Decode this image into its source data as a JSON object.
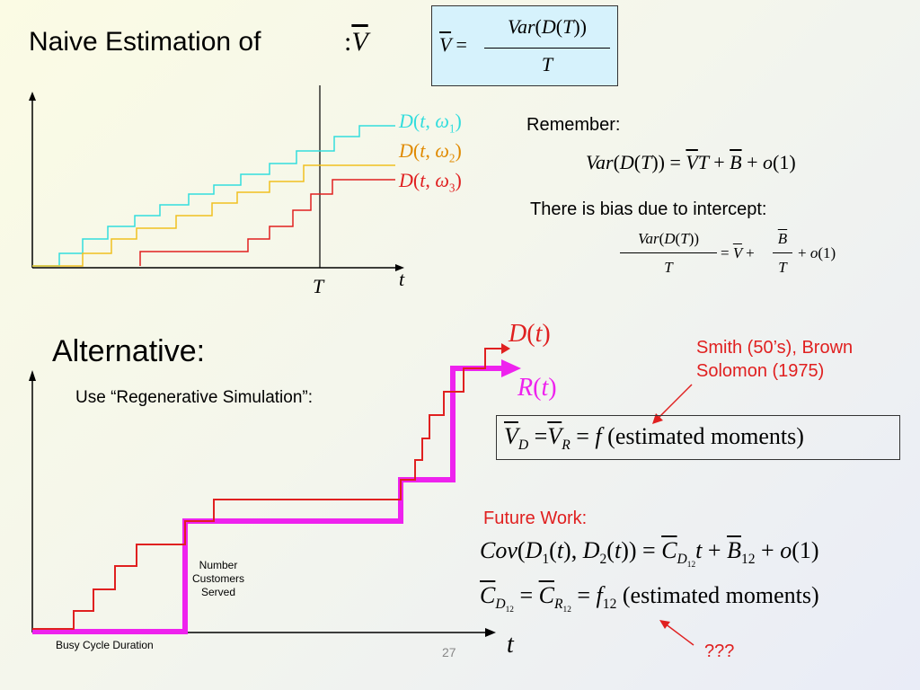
{
  "slide": {
    "title": "Naive Estimation of",
    "title_symbol": ":V",
    "formula_box": {
      "lhs": "V",
      "num": "Var(D(T))",
      "den": "T"
    },
    "remember_label": "Remember:",
    "remember_formula": "Var(D(T)) = VT + B + o(1)",
    "bias_label": "There is bias due to intercept:",
    "bias_num": "Var(D(T))",
    "bias_den": "T",
    "bias_rhs_1": "= V +",
    "bias_frac_num": "B",
    "bias_frac_den": "T",
    "bias_rhs_2": "+ o(1)",
    "top_chart": {
      "legend": [
        "D(t, ω1)",
        "D(t, ω2)",
        "D(t, ω3)"
      ],
      "x_axis_label": "t",
      "T_label": "T",
      "colors": [
        "#33dddd",
        "#f0c020",
        "#e02020"
      ]
    },
    "alternative_heading": "Alternative:",
    "regen_text": "Use “Regenerative Simulation”:",
    "Dt_label": "D(t)",
    "Rt_label": "R(t)",
    "smith_note": "Smith (50’s), Brown Solomon (1975)",
    "vd_formula": "V_D = V_R = f (estimated moments)",
    "future_label": "Future Work:",
    "cov_formula": "Cov(D1(t), D2(t)) = C_D12 t + B12 + o(1)",
    "c_formula": "C_D12 = C_R12 = f12 (estimated moments)",
    "qqq": "???",
    "number_customers": "Number Customers Served",
    "busy_cycle": "Busy Cycle Duration",
    "t_label_bottom": "t",
    "page_number": "27",
    "accent_red": "#e02020",
    "accent_magenta": "#ee22ee"
  }
}
